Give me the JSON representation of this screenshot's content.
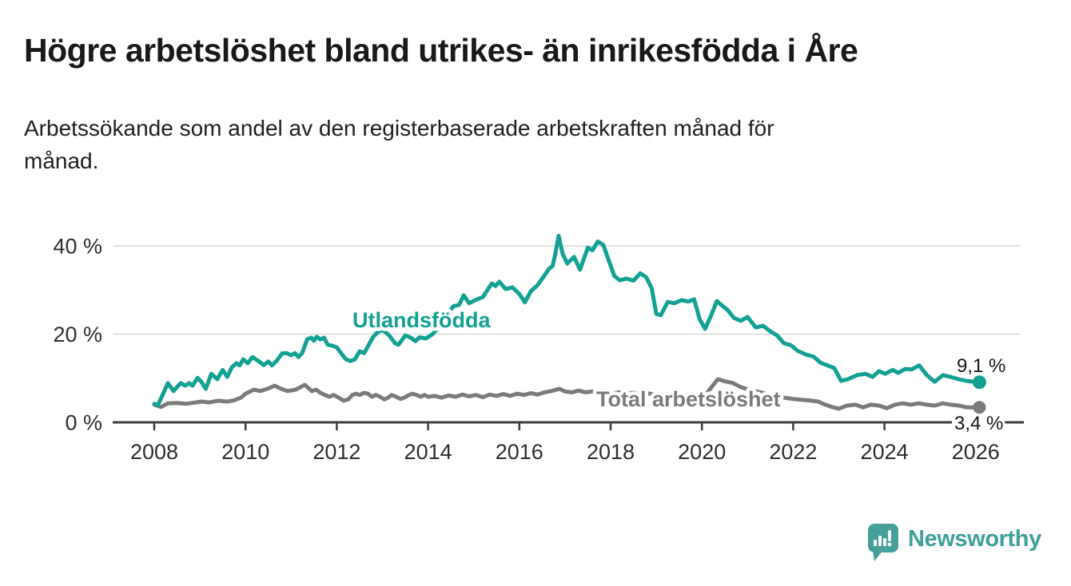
{
  "title": "Högre arbetslöshet bland utrikes- än inrikesfödda i Åre",
  "subtitle_line1": "Arbetssökande som andel av den registerbaserade arbetskraften månad för",
  "subtitle_line2": "månad.",
  "colors": {
    "teal": "#12a192",
    "gray": "#7b7b7b",
    "grid": "#d9d9d9",
    "axis": "#3d3d3d",
    "tick_text": "#2e2e2e",
    "title_text": "#191919",
    "logo_teal": "#3f9f99",
    "background": "#ffffff"
  },
  "logo": {
    "wordmark": "Newsworthy",
    "icon": "speech-bubble-bar-chart-icon"
  },
  "chart_data": {
    "type": "line",
    "grid": "horizontal",
    "legend_position": "inline-labels",
    "x_ticks": [
      2008,
      2010,
      2012,
      2014,
      2016,
      2018,
      2020,
      2022,
      2024,
      2026
    ],
    "x_tick_labels": [
      "2008",
      "2010",
      "2012",
      "2014",
      "2016",
      "2018",
      "2020",
      "2022",
      "2024",
      "2026"
    ],
    "y_ticks": [
      0,
      20,
      40
    ],
    "y_tick_labels": [
      "0 %",
      "20 %",
      "40 %"
    ],
    "ylim": [
      0,
      44
    ],
    "xlim": [
      2007.1,
      2027.0
    ],
    "series": [
      {
        "name": "Utlandsfödda",
        "color": "#12a192",
        "end_label": "9,1 %",
        "end_value": 9.1,
        "points": [
          [
            2008.0,
            4.2
          ],
          [
            2008.08,
            3.9
          ],
          [
            2008.3,
            8.9
          ],
          [
            2008.42,
            7.1
          ],
          [
            2008.58,
            8.9
          ],
          [
            2008.68,
            8.3
          ],
          [
            2008.76,
            8.9
          ],
          [
            2008.84,
            8.3
          ],
          [
            2008.95,
            10.1
          ],
          [
            2009.03,
            9.2
          ],
          [
            2009.13,
            7.6
          ],
          [
            2009.25,
            11.0
          ],
          [
            2009.38,
            9.8
          ],
          [
            2009.5,
            11.9
          ],
          [
            2009.6,
            10.3
          ],
          [
            2009.7,
            12.5
          ],
          [
            2009.8,
            13.4
          ],
          [
            2009.87,
            12.9
          ],
          [
            2009.95,
            14.3
          ],
          [
            2010.05,
            13.4
          ],
          [
            2010.15,
            14.8
          ],
          [
            2010.28,
            13.9
          ],
          [
            2010.4,
            13.0
          ],
          [
            2010.5,
            13.8
          ],
          [
            2010.58,
            12.9
          ],
          [
            2010.68,
            13.9
          ],
          [
            2010.8,
            15.6
          ],
          [
            2010.9,
            15.7
          ],
          [
            2011.0,
            15.2
          ],
          [
            2011.08,
            15.7
          ],
          [
            2011.16,
            14.8
          ],
          [
            2011.24,
            15.7
          ],
          [
            2011.35,
            18.8
          ],
          [
            2011.44,
            19.2
          ],
          [
            2011.5,
            18.5
          ],
          [
            2011.56,
            19.4
          ],
          [
            2011.64,
            18.8
          ],
          [
            2011.72,
            19.2
          ],
          [
            2011.8,
            17.6
          ],
          [
            2011.9,
            17.4
          ],
          [
            2012.0,
            17.0
          ],
          [
            2012.1,
            15.6
          ],
          [
            2012.2,
            14.3
          ],
          [
            2012.3,
            13.9
          ],
          [
            2012.4,
            14.3
          ],
          [
            2012.5,
            16.1
          ],
          [
            2012.6,
            15.7
          ],
          [
            2012.7,
            17.6
          ],
          [
            2012.8,
            19.4
          ],
          [
            2012.88,
            20.3
          ],
          [
            2013.0,
            21.0
          ],
          [
            2013.15,
            19.7
          ],
          [
            2013.28,
            17.9
          ],
          [
            2013.35,
            17.6
          ],
          [
            2013.5,
            19.7
          ],
          [
            2013.62,
            19.2
          ],
          [
            2013.72,
            18.4
          ],
          [
            2013.82,
            19.3
          ],
          [
            2013.95,
            19.0
          ],
          [
            2014.1,
            20.0
          ],
          [
            2014.25,
            21.8
          ],
          [
            2014.4,
            24.0
          ],
          [
            2014.55,
            26.3
          ],
          [
            2014.68,
            26.6
          ],
          [
            2014.78,
            28.8
          ],
          [
            2014.9,
            27.0
          ],
          [
            2015.05,
            27.8
          ],
          [
            2015.2,
            28.4
          ],
          [
            2015.3,
            30.0
          ],
          [
            2015.4,
            31.5
          ],
          [
            2015.48,
            30.9
          ],
          [
            2015.56,
            31.9
          ],
          [
            2015.7,
            30.2
          ],
          [
            2015.85,
            30.6
          ],
          [
            2016.0,
            29.1
          ],
          [
            2016.12,
            27.2
          ],
          [
            2016.25,
            29.7
          ],
          [
            2016.4,
            31.1
          ],
          [
            2016.55,
            33.3
          ],
          [
            2016.65,
            34.8
          ],
          [
            2016.73,
            35.5
          ],
          [
            2016.79,
            38.3
          ],
          [
            2016.86,
            42.3
          ],
          [
            2016.95,
            38.2
          ],
          [
            2017.05,
            36.0
          ],
          [
            2017.2,
            37.5
          ],
          [
            2017.33,
            34.6
          ],
          [
            2017.5,
            39.6
          ],
          [
            2017.6,
            39.0
          ],
          [
            2017.72,
            41.0
          ],
          [
            2017.84,
            40.2
          ],
          [
            2017.95,
            37.0
          ],
          [
            2018.08,
            33.2
          ],
          [
            2018.2,
            32.2
          ],
          [
            2018.35,
            32.6
          ],
          [
            2018.5,
            32.1
          ],
          [
            2018.65,
            33.8
          ],
          [
            2018.78,
            32.9
          ],
          [
            2018.9,
            30.4
          ],
          [
            2019.0,
            24.6
          ],
          [
            2019.1,
            24.3
          ],
          [
            2019.25,
            27.3
          ],
          [
            2019.4,
            27.0
          ],
          [
            2019.55,
            27.7
          ],
          [
            2019.7,
            27.4
          ],
          [
            2019.83,
            27.9
          ],
          [
            2019.95,
            23.4
          ],
          [
            2020.07,
            21.2
          ],
          [
            2020.2,
            24.2
          ],
          [
            2020.33,
            27.5
          ],
          [
            2020.45,
            26.4
          ],
          [
            2020.57,
            25.4
          ],
          [
            2020.7,
            23.7
          ],
          [
            2020.85,
            23.0
          ],
          [
            2021.0,
            23.9
          ],
          [
            2021.18,
            21.5
          ],
          [
            2021.34,
            21.9
          ],
          [
            2021.5,
            20.6
          ],
          [
            2021.65,
            19.7
          ],
          [
            2021.8,
            17.9
          ],
          [
            2021.95,
            17.5
          ],
          [
            2022.1,
            16.2
          ],
          [
            2022.3,
            15.3
          ],
          [
            2022.45,
            14.9
          ],
          [
            2022.6,
            13.5
          ],
          [
            2022.75,
            12.9
          ],
          [
            2022.9,
            12.3
          ],
          [
            2023.05,
            9.4
          ],
          [
            2023.2,
            9.8
          ],
          [
            2023.4,
            10.7
          ],
          [
            2023.58,
            11.0
          ],
          [
            2023.74,
            10.3
          ],
          [
            2023.88,
            11.6
          ],
          [
            2024.02,
            11.0
          ],
          [
            2024.18,
            11.9
          ],
          [
            2024.3,
            11.2
          ],
          [
            2024.46,
            12.1
          ],
          [
            2024.6,
            12.0
          ],
          [
            2024.76,
            12.9
          ],
          [
            2024.93,
            10.7
          ],
          [
            2025.1,
            9.2
          ],
          [
            2025.28,
            10.7
          ],
          [
            2025.45,
            10.3
          ],
          [
            2025.62,
            9.8
          ],
          [
            2025.8,
            9.4
          ],
          [
            2025.95,
            9.2
          ],
          [
            2026.08,
            9.1
          ]
        ]
      },
      {
        "name": "Total arbetslöshet",
        "color": "#7b7b7b",
        "end_label": "3,4 %",
        "end_value": 3.4,
        "points": [
          [
            2008.0,
            4.0
          ],
          [
            2008.15,
            3.5
          ],
          [
            2008.3,
            4.3
          ],
          [
            2008.5,
            4.4
          ],
          [
            2008.7,
            4.2
          ],
          [
            2008.9,
            4.5
          ],
          [
            2009.05,
            4.7
          ],
          [
            2009.2,
            4.5
          ],
          [
            2009.4,
            4.9
          ],
          [
            2009.6,
            4.7
          ],
          [
            2009.75,
            5.0
          ],
          [
            2009.9,
            5.6
          ],
          [
            2010.0,
            6.5
          ],
          [
            2010.18,
            7.4
          ],
          [
            2010.33,
            7.1
          ],
          [
            2010.48,
            7.6
          ],
          [
            2010.64,
            8.3
          ],
          [
            2010.78,
            7.6
          ],
          [
            2010.92,
            7.1
          ],
          [
            2011.1,
            7.4
          ],
          [
            2011.3,
            8.5
          ],
          [
            2011.45,
            7.1
          ],
          [
            2011.55,
            7.4
          ],
          [
            2011.64,
            6.7
          ],
          [
            2011.74,
            6.2
          ],
          [
            2011.84,
            5.8
          ],
          [
            2011.93,
            6.2
          ],
          [
            2012.04,
            5.6
          ],
          [
            2012.15,
            4.9
          ],
          [
            2012.25,
            5.2
          ],
          [
            2012.34,
            6.2
          ],
          [
            2012.42,
            6.5
          ],
          [
            2012.5,
            6.2
          ],
          [
            2012.6,
            6.7
          ],
          [
            2012.68,
            6.5
          ],
          [
            2012.77,
            5.8
          ],
          [
            2012.86,
            6.2
          ],
          [
            2012.95,
            5.8
          ],
          [
            2013.04,
            5.2
          ],
          [
            2013.12,
            5.6
          ],
          [
            2013.2,
            6.2
          ],
          [
            2013.3,
            5.8
          ],
          [
            2013.4,
            5.3
          ],
          [
            2013.5,
            5.7
          ],
          [
            2013.58,
            6.2
          ],
          [
            2013.66,
            6.5
          ],
          [
            2013.75,
            6.2
          ],
          [
            2013.84,
            5.8
          ],
          [
            2013.92,
            6.2
          ],
          [
            2014.0,
            5.8
          ],
          [
            2014.15,
            6.0
          ],
          [
            2014.3,
            5.6
          ],
          [
            2014.45,
            6.1
          ],
          [
            2014.6,
            5.8
          ],
          [
            2014.75,
            6.3
          ],
          [
            2014.9,
            5.9
          ],
          [
            2015.05,
            6.2
          ],
          [
            2015.2,
            5.7
          ],
          [
            2015.35,
            6.3
          ],
          [
            2015.5,
            6.0
          ],
          [
            2015.65,
            6.4
          ],
          [
            2015.8,
            6.0
          ],
          [
            2015.95,
            6.5
          ],
          [
            2016.1,
            6.2
          ],
          [
            2016.25,
            6.6
          ],
          [
            2016.4,
            6.3
          ],
          [
            2016.55,
            6.8
          ],
          [
            2016.7,
            7.1
          ],
          [
            2016.88,
            7.6
          ],
          [
            2017.0,
            7.0
          ],
          [
            2017.15,
            6.8
          ],
          [
            2017.3,
            7.2
          ],
          [
            2017.45,
            6.8
          ],
          [
            2017.6,
            7.0
          ],
          [
            2017.75,
            6.6
          ],
          [
            2017.9,
            6.9
          ],
          [
            2018.05,
            6.6
          ],
          [
            2018.2,
            6.8
          ],
          [
            2018.35,
            6.5
          ],
          [
            2018.5,
            6.7
          ],
          [
            2018.65,
            6.4
          ],
          [
            2018.8,
            6.6
          ],
          [
            2018.95,
            6.3
          ],
          [
            2019.1,
            6.2
          ],
          [
            2019.3,
            6.4
          ],
          [
            2019.5,
            6.1
          ],
          [
            2019.7,
            6.3
          ],
          [
            2019.9,
            6.2
          ],
          [
            2020.1,
            6.5
          ],
          [
            2020.25,
            8.5
          ],
          [
            2020.35,
            9.8
          ],
          [
            2020.5,
            9.3
          ],
          [
            2020.68,
            8.9
          ],
          [
            2020.85,
            8.0
          ],
          [
            2021.0,
            7.5
          ],
          [
            2021.2,
            7.0
          ],
          [
            2021.4,
            6.5
          ],
          [
            2021.6,
            6.0
          ],
          [
            2021.8,
            5.6
          ],
          [
            2022.0,
            5.3
          ],
          [
            2022.2,
            5.1
          ],
          [
            2022.4,
            4.9
          ],
          [
            2022.55,
            4.7
          ],
          [
            2022.7,
            4.0
          ],
          [
            2022.85,
            3.5
          ],
          [
            2023.0,
            3.1
          ],
          [
            2023.18,
            3.8
          ],
          [
            2023.36,
            4.0
          ],
          [
            2023.53,
            3.4
          ],
          [
            2023.7,
            4.0
          ],
          [
            2023.88,
            3.8
          ],
          [
            2024.05,
            3.2
          ],
          [
            2024.23,
            4.0
          ],
          [
            2024.4,
            4.3
          ],
          [
            2024.58,
            4.0
          ],
          [
            2024.75,
            4.3
          ],
          [
            2024.93,
            4.0
          ],
          [
            2025.1,
            3.8
          ],
          [
            2025.28,
            4.3
          ],
          [
            2025.45,
            4.0
          ],
          [
            2025.63,
            3.8
          ],
          [
            2025.8,
            3.4
          ],
          [
            2026.08,
            3.4
          ]
        ]
      }
    ]
  }
}
